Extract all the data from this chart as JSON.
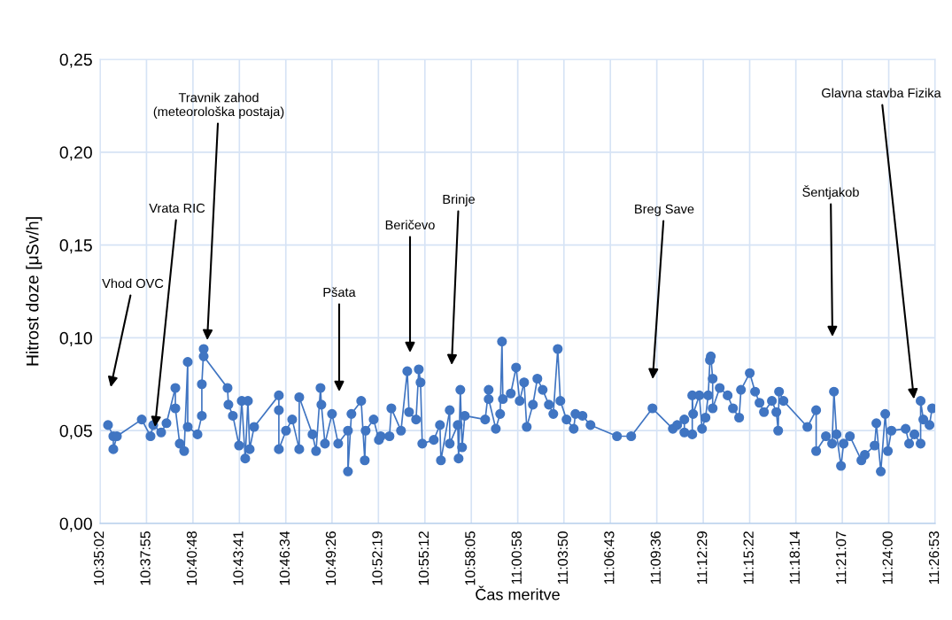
{
  "chart_data": {
    "type": "line",
    "xlabel": "Čas meritve",
    "ylabel": "Hitrost doze [μSv/h]",
    "x": [
      10.5921,
      10.5976,
      10.5976,
      10.6013,
      10.627,
      10.6361,
      10.6389,
      10.6471,
      10.6526,
      10.6618,
      10.6618,
      10.6663,
      10.6709,
      10.6746,
      10.6746,
      10.6847,
      10.6892,
      10.6892,
      10.6911,
      10.6911,
      10.7158,
      10.7167,
      10.7213,
      10.7277,
      10.7305,
      10.7341,
      10.7369,
      10.7387,
      10.7433,
      10.7689,
      10.7689,
      10.7689,
      10.7763,
      10.7827,
      10.79,
      10.79,
      10.8037,
      10.8074,
      10.812,
      10.8129,
      10.8166,
      10.8239,
      10.8303,
      10.8404,
      10.8404,
      10.844,
      10.8541,
      10.8578,
      10.8587,
      10.867,
      10.8724,
      10.8743,
      10.8834,
      10.8853,
      10.8953,
      10.9018,
      10.9036,
      10.9109,
      10.9137,
      10.9155,
      10.9173,
      10.9292,
      10.9356,
      10.9366,
      10.9457,
      10.9457,
      10.954,
      10.9549,
      10.9567,
      10.9585,
      10.9613,
      10.9824,
      10.986,
      10.986,
      10.9934,
      10.9979,
      10.9998,
      11.0007,
      11.0089,
      11.0144,
      11.0181,
      11.0227,
      11.0254,
      11.0318,
      11.0364,
      11.0419,
      11.0483,
      11.0529,
      11.0575,
      11.0602,
      11.0666,
      11.074,
      11.0758,
      11.0831,
      11.0914,
      11.1188,
      11.1335,
      11.1555,
      11.1766,
      11.1811,
      11.1885,
      11.1885,
      11.1967,
      11.1967,
      11.1976,
      11.204,
      11.2068,
      11.2104,
      11.2132,
      11.215,
      11.2159,
      11.2178,
      11.2178,
      11.2251,
      11.2333,
      11.2388,
      11.2452,
      11.2471,
      11.2562,
      11.2617,
      11.2663,
      11.2709,
      11.2791,
      11.2837,
      11.2856,
      11.2865,
      11.2911,
      11.3158,
      11.3249,
      11.3249,
      11.335,
      11.3414,
      11.3433,
      11.346,
      11.3506,
      11.3533,
      11.3598,
      11.3717,
      11.3753,
      11.3854,
      11.3872,
      11.3918,
      11.3964,
      11.3991,
      11.4028,
      11.4175,
      11.4211,
      11.4266,
      11.433,
      11.433,
      11.4358,
      11.4422,
      11.4449
    ],
    "series": [
      {
        "color": "#4075c2",
        "values": [
          0.053,
          0.047,
          0.04,
          0.047,
          0.056,
          0.047,
          0.053,
          0.049,
          0.054,
          0.073,
          0.062,
          0.043,
          0.039,
          0.087,
          0.052,
          0.048,
          0.058,
          0.075,
          0.094,
          0.09,
          0.073,
          0.064,
          0.058,
          0.042,
          0.066,
          0.035,
          0.066,
          0.04,
          0.052,
          0.069,
          0.061,
          0.04,
          0.05,
          0.056,
          0.04,
          0.068,
          0.048,
          0.039,
          0.073,
          0.064,
          0.043,
          0.059,
          0.043,
          0.05,
          0.028,
          0.059,
          0.066,
          0.034,
          0.05,
          0.056,
          0.045,
          0.047,
          0.047,
          0.062,
          0.05,
          0.082,
          0.06,
          0.056,
          0.083,
          0.076,
          0.043,
          0.045,
          0.053,
          0.034,
          0.061,
          0.043,
          0.053,
          0.035,
          0.072,
          0.041,
          0.058,
          0.056,
          0.072,
          0.067,
          0.051,
          0.059,
          0.098,
          0.067,
          0.07,
          0.084,
          0.066,
          0.076,
          0.052,
          0.064,
          0.078,
          0.072,
          0.064,
          0.059,
          0.094,
          0.066,
          0.056,
          0.051,
          0.059,
          0.058,
          0.053,
          0.047,
          0.047,
          0.062,
          0.051,
          0.053,
          0.056,
          0.049,
          0.048,
          0.069,
          0.059,
          0.069,
          0.051,
          0.057,
          0.069,
          0.088,
          0.09,
          0.078,
          0.062,
          0.073,
          0.069,
          0.062,
          0.057,
          0.072,
          0.081,
          0.071,
          0.065,
          0.06,
          0.066,
          0.06,
          0.05,
          0.071,
          0.066,
          0.052,
          0.061,
          0.039,
          0.047,
          0.043,
          0.071,
          0.048,
          0.031,
          0.043,
          0.047,
          0.034,
          0.037,
          0.042,
          0.054,
          0.028,
          0.059,
          0.039,
          0.05,
          0.051,
          0.043,
          0.048,
          0.043,
          0.066,
          0.056,
          0.053,
          0.062
        ]
      }
    ],
    "xlim": [
      10.58389,
      11.44806
    ],
    "xticks": [
      {
        "value": 10.58389,
        "label": "10:35:02"
      },
      {
        "value": 10.63194,
        "label": "10:37:55"
      },
      {
        "value": 10.68,
        "label": "10:40:48"
      },
      {
        "value": 10.72806,
        "label": "10:43:41"
      },
      {
        "value": 10.77611,
        "label": "10:46:34"
      },
      {
        "value": 10.82389,
        "label": "10:49:26"
      },
      {
        "value": 10.87194,
        "label": "10:52:19"
      },
      {
        "value": 10.92,
        "label": "10:55:12"
      },
      {
        "value": 10.96806,
        "label": "10:58:05"
      },
      {
        "value": 11.01611,
        "label": "11:00:58"
      },
      {
        "value": 11.06389,
        "label": "11:03:50"
      },
      {
        "value": 11.11194,
        "label": "11:06:43"
      },
      {
        "value": 11.16,
        "label": "11:09:36"
      },
      {
        "value": 11.20806,
        "label": "11:12:29"
      },
      {
        "value": 11.25611,
        "label": "11:15:22"
      },
      {
        "value": 11.30389,
        "label": "11:18:14"
      },
      {
        "value": 11.35194,
        "label": "11:21:07"
      },
      {
        "value": 11.4,
        "label": "11:24:00"
      },
      {
        "value": 11.44806,
        "label": "11:26:53"
      }
    ],
    "ylim": [
      0,
      0.25
    ],
    "yticks": [
      {
        "value": 0,
        "label": "0,00"
      },
      {
        "value": 0.05,
        "label": "0,05"
      },
      {
        "value": 0.1,
        "label": "0,10"
      },
      {
        "value": 0.15,
        "label": "0,15"
      },
      {
        "value": 0.2,
        "label": "0,20"
      },
      {
        "value": 0.25,
        "label": "0,25"
      }
    ],
    "grid": true,
    "marker": "circle",
    "line_style": "solid",
    "annotations": [
      "Vhod OVC",
      {
        "text": "Vrata RIC",
        "x": 10.6407,
        "y": 0.052
      },
      "Travnik zahod\n(meteorološka postaja)",
      "Pšata",
      "Beričevo",
      "Brinje",
      "Breg Save",
      "Šentjakob",
      {
        "text": "Glavna stavba Fizika",
        "x": 11.4261,
        "y": 0.067
      }
    ]
  }
}
